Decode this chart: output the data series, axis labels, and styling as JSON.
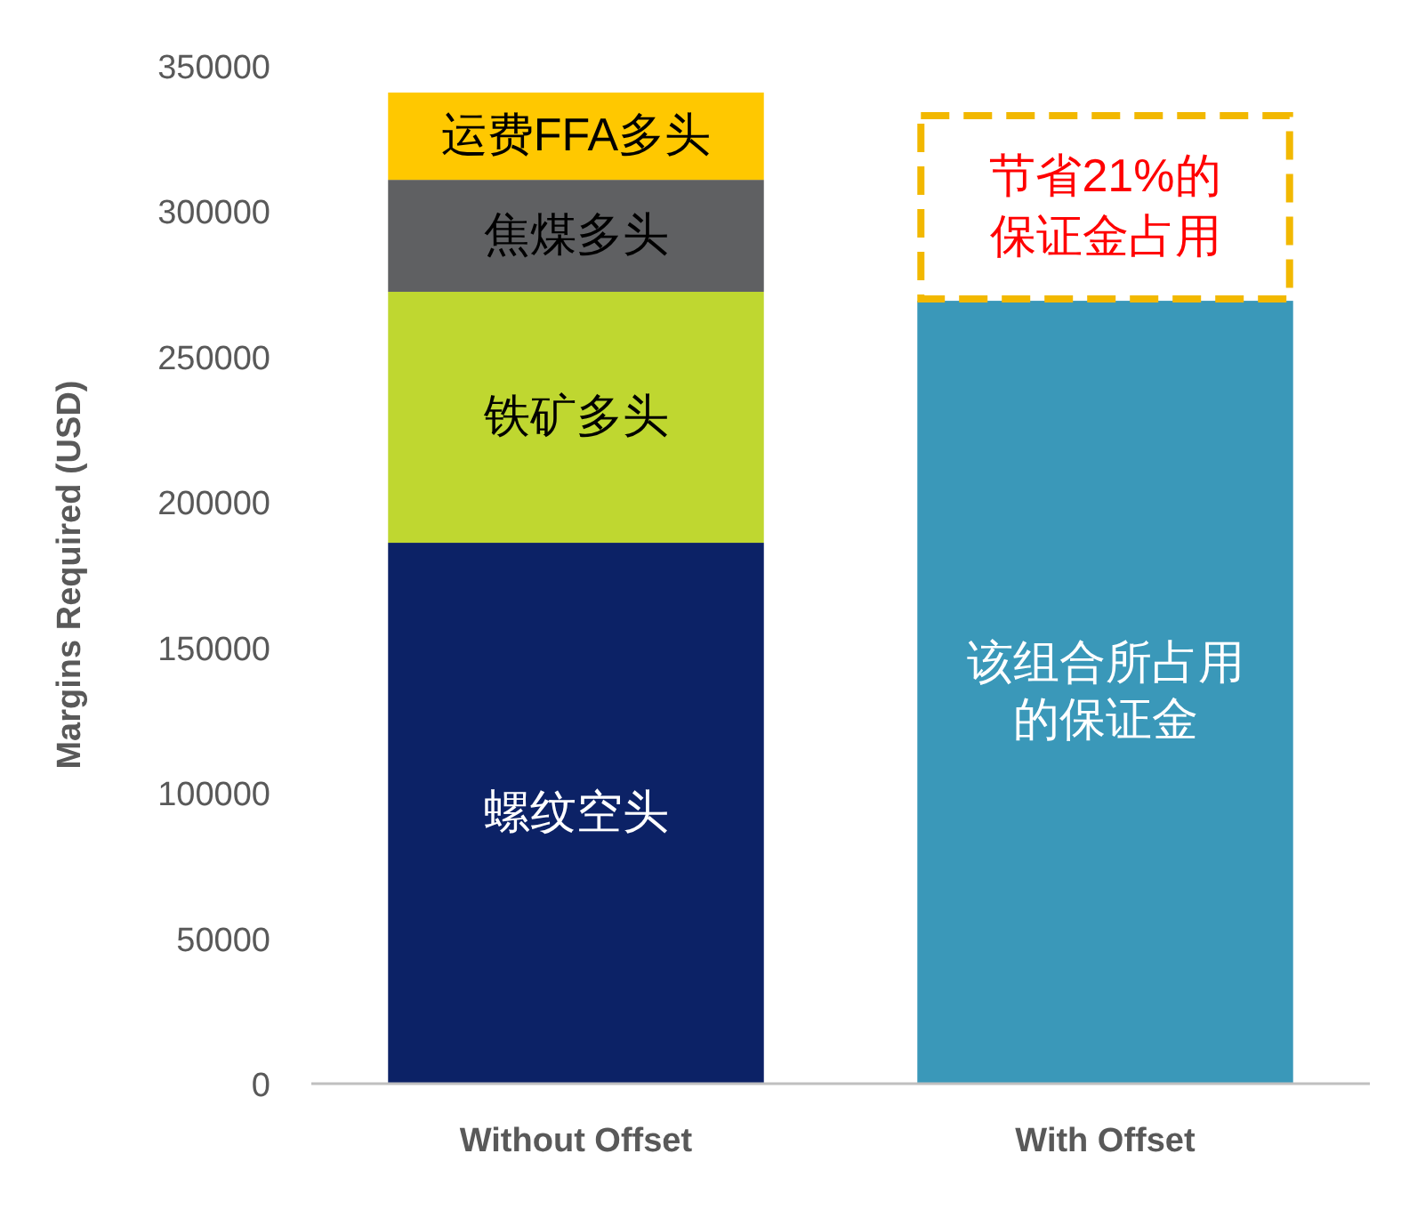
{
  "chart_data": {
    "type": "bar",
    "stacked": true,
    "ylabel": "Margins Required (USD)",
    "categories": [
      "Without Offset",
      "With Offset"
    ],
    "ylim": [
      0,
      350000
    ],
    "yticks": [
      0,
      50000,
      100000,
      150000,
      200000,
      250000,
      300000,
      350000
    ],
    "grid": false,
    "series": [
      {
        "name": "螺纹空头",
        "color": "#0c2266",
        "values": [
          186000,
          null
        ]
      },
      {
        "name": "铁矿多头",
        "color": "#bfd730",
        "values": [
          86300,
          null
        ]
      },
      {
        "name": "焦煤多头",
        "color": "#5f6062",
        "values": [
          38500,
          null
        ]
      },
      {
        "name": "运费FFA多头",
        "color": "#ffc800",
        "values": [
          30000,
          null
        ]
      },
      {
        "name": "该组合所占用的保证金",
        "color": "#3a98b9",
        "values": [
          null,
          269200
        ]
      }
    ],
    "annotations": [
      "节省21%的保证金占用"
    ]
  }
}
